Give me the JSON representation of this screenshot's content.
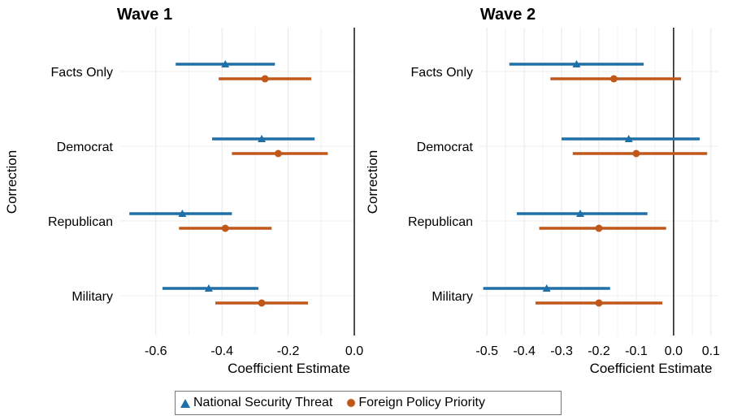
{
  "chart_data": [
    {
      "type": "scatter",
      "title": "Wave 1",
      "xlabel": "Coefficient Estimate",
      "ylabel": "Correction",
      "categories": [
        "Facts Only",
        "Democrat",
        "Republican",
        "Military"
      ],
      "xlim": [
        -0.71,
        0.0
      ],
      "xticks": [
        "-0.6",
        "-0.4",
        "-0.2",
        "0.0"
      ],
      "reference_line": 0.0,
      "series": [
        {
          "name": "National Security Threat",
          "color": "#1f6fa8",
          "marker": "triangle",
          "points": [
            {
              "category": "Facts Only",
              "estimate": -0.39,
              "ci_low": -0.54,
              "ci_high": -0.24
            },
            {
              "category": "Democrat",
              "estimate": -0.28,
              "ci_low": -0.43,
              "ci_high": -0.12
            },
            {
              "category": "Republican",
              "estimate": -0.52,
              "ci_low": -0.68,
              "ci_high": -0.37
            },
            {
              "category": "Military",
              "estimate": -0.44,
              "ci_low": -0.58,
              "ci_high": -0.29
            }
          ]
        },
        {
          "name": "Foreign Policy Priority",
          "color": "#c2571a",
          "marker": "circle",
          "points": [
            {
              "category": "Facts Only",
              "estimate": -0.27,
              "ci_low": -0.41,
              "ci_high": -0.13
            },
            {
              "category": "Democrat",
              "estimate": -0.23,
              "ci_low": -0.37,
              "ci_high": -0.08
            },
            {
              "category": "Republican",
              "estimate": -0.39,
              "ci_low": -0.53,
              "ci_high": -0.25
            },
            {
              "category": "Military",
              "estimate": -0.28,
              "ci_low": -0.42,
              "ci_high": -0.14
            }
          ]
        }
      ]
    },
    {
      "type": "scatter",
      "title": "Wave 2",
      "xlabel": "Coefficient Estimate",
      "ylabel": "Correction",
      "categories": [
        "Facts Only",
        "Democrat",
        "Republican",
        "Military"
      ],
      "xlim": [
        -0.52,
        0.12
      ],
      "xticks": [
        "-0.5",
        "-0.4",
        "-0.3",
        "-0.2",
        "-0.1",
        "0.0",
        "0.1"
      ],
      "reference_line": 0.0,
      "series": [
        {
          "name": "National Security Threat",
          "color": "#1f6fa8",
          "marker": "triangle",
          "points": [
            {
              "category": "Facts Only",
              "estimate": -0.26,
              "ci_low": -0.44,
              "ci_high": -0.08
            },
            {
              "category": "Democrat",
              "estimate": -0.12,
              "ci_low": -0.3,
              "ci_high": 0.07
            },
            {
              "category": "Republican",
              "estimate": -0.25,
              "ci_low": -0.42,
              "ci_high": -0.07
            },
            {
              "category": "Military",
              "estimate": -0.34,
              "ci_low": -0.51,
              "ci_high": -0.17
            }
          ]
        },
        {
          "name": "Foreign Policy Priority",
          "color": "#c2571a",
          "marker": "circle",
          "points": [
            {
              "category": "Facts Only",
              "estimate": -0.16,
              "ci_low": -0.33,
              "ci_high": 0.02
            },
            {
              "category": "Democrat",
              "estimate": -0.1,
              "ci_low": -0.27,
              "ci_high": 0.09
            },
            {
              "category": "Republican",
              "estimate": -0.2,
              "ci_low": -0.36,
              "ci_high": -0.02
            },
            {
              "category": "Military",
              "estimate": -0.2,
              "ci_low": -0.37,
              "ci_high": -0.03
            }
          ]
        }
      ]
    }
  ],
  "legend": {
    "items": [
      {
        "label": "National Security Threat",
        "icon": "triangle-marker-icon"
      },
      {
        "label": "Foreign Policy Priority",
        "icon": "circle-marker-icon"
      }
    ]
  }
}
